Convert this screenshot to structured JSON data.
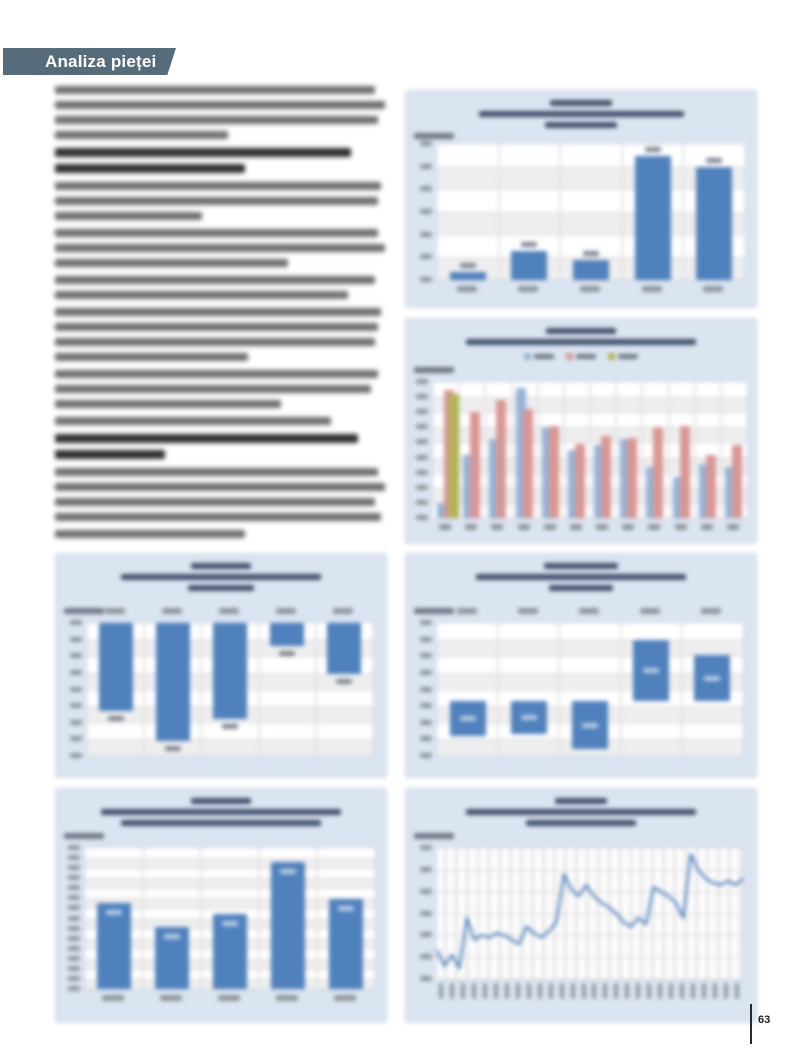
{
  "note": "Scanned report page; all body text, chart titles and axis labels are blurred/illegible in the source. Chart values are estimates read from bar and line geometry on a gridline-implied scale.",
  "header": {
    "title": "Analiza pieței",
    "bg_color": "#576c7b",
    "text_color": "#ffffff"
  },
  "footer": {
    "page_number": "63"
  },
  "colors": {
    "panel_bg": "#dbe5f1",
    "plot_bg": "#ffffff",
    "grid": "#d9d9d9",
    "bar_blue": "#4f81bd",
    "bar_light_blue": "#95b3d7",
    "bar_red": "#d99694",
    "bar_olive": "#b2b457",
    "line_blue": "#4f81bd"
  },
  "text_column": {
    "blocks": [
      {
        "bold": false,
        "line_widths": [
          96,
          99,
          97,
          52
        ]
      },
      {
        "bold": true,
        "line_widths": [
          89,
          57
        ]
      },
      {
        "bold": false,
        "line_widths": [
          98,
          97,
          44
        ]
      },
      {
        "bold": false,
        "line_widths": [
          97,
          99,
          70
        ]
      },
      {
        "bold": false,
        "line_widths": [
          96,
          88
        ]
      },
      {
        "bold": false,
        "line_widths": [
          98,
          97,
          96,
          58
        ]
      },
      {
        "bold": false,
        "line_widths": [
          97,
          95,
          68
        ]
      },
      {
        "bold": false,
        "line_widths": [
          83
        ]
      },
      {
        "bold": true,
        "line_widths": [
          91,
          33
        ]
      },
      {
        "bold": false,
        "line_widths": [
          97,
          99,
          96,
          98
        ]
      },
      {
        "bold": false,
        "line_widths": [
          57
        ]
      }
    ]
  },
  "chart_data": [
    {
      "id": "chart-top-right-bar",
      "type": "bar",
      "title": "",
      "title_blurred": true,
      "categories": [
        "",
        "",
        "",
        "",
        ""
      ],
      "values": [
        5,
        19,
        13,
        82,
        75
      ],
      "values_estimated": true,
      "ylim": [
        0,
        90
      ],
      "grid_rows": 6,
      "bar_color": "#4f81bd",
      "data_labels": "above",
      "legend_position": "none"
    },
    {
      "id": "chart-grouped-bar",
      "type": "bar",
      "grouped": true,
      "title": "",
      "title_blurred": true,
      "categories": [
        "",
        "",
        "",
        "",
        "",
        "",
        "",
        "",
        "",
        "",
        "",
        ""
      ],
      "series": [
        {
          "name": "",
          "color": "#95b3d7",
          "values": [
            10,
            42,
            52,
            86,
            60,
            45,
            48,
            52,
            34,
            27,
            36,
            34
          ]
        },
        {
          "name": "",
          "color": "#d99694",
          "values": [
            85,
            70,
            78,
            72,
            61,
            49,
            54,
            53,
            60,
            61,
            42,
            48
          ]
        },
        {
          "name": "",
          "color": "#b2b457",
          "values": [
            82,
            null,
            null,
            null,
            null,
            null,
            null,
            null,
            null,
            null,
            null,
            null
          ]
        }
      ],
      "values_estimated": true,
      "ylim": [
        0,
        90
      ],
      "grid_rows": 9,
      "legend_position": "top"
    },
    {
      "id": "chart-mid-left-negative-bar",
      "type": "bar",
      "title": "",
      "title_blurred": true,
      "categories": [
        "",
        "",
        "",
        "",
        ""
      ],
      "values": [
        -66,
        -89,
        -72,
        -17,
        -38
      ],
      "values_estimated": true,
      "ylim": [
        -100,
        0
      ],
      "grid_rows": 8,
      "bar_color": "#4f81bd",
      "data_labels": "below",
      "categories_position": "top"
    },
    {
      "id": "chart-mid-right-diverging-bar",
      "type": "bar",
      "title": "",
      "title_blurred": true,
      "categories": [
        "",
        "",
        "",
        "",
        ""
      ],
      "values": [
        -32,
        -30,
        -44,
        55,
        41
      ],
      "values_estimated": true,
      "ylim": [
        -50,
        70
      ],
      "grid_rows": 8,
      "bar_color": "#4f81bd",
      "data_labels": "inside",
      "categories_position": "top"
    },
    {
      "id": "chart-bottom-left-bar",
      "type": "bar",
      "title": "",
      "title_blurred": true,
      "categories": [
        "",
        "",
        "",
        "",
        ""
      ],
      "values": [
        61,
        44,
        53,
        90,
        64
      ],
      "values_estimated": true,
      "ylim": [
        0,
        100
      ],
      "grid_rows": 14,
      "bar_color": "#4f81bd",
      "data_labels": "inside-top"
    },
    {
      "id": "chart-bottom-right-line",
      "type": "line",
      "title": "",
      "title_blurred": true,
      "x_tick_count": 28,
      "values": [
        33,
        26,
        31,
        25,
        48,
        38,
        40,
        39,
        41,
        40,
        38,
        36,
        44,
        41,
        39,
        42,
        46,
        68,
        61,
        58,
        63,
        58,
        55,
        53,
        50,
        46,
        44,
        48,
        45,
        62,
        60,
        58,
        55,
        48,
        77,
        70,
        66,
        64,
        63,
        65,
        63,
        66
      ],
      "values_estimated": true,
      "ylim": [
        20,
        80
      ],
      "grid_rows": 6,
      "line_color": "#4f81bd"
    }
  ]
}
